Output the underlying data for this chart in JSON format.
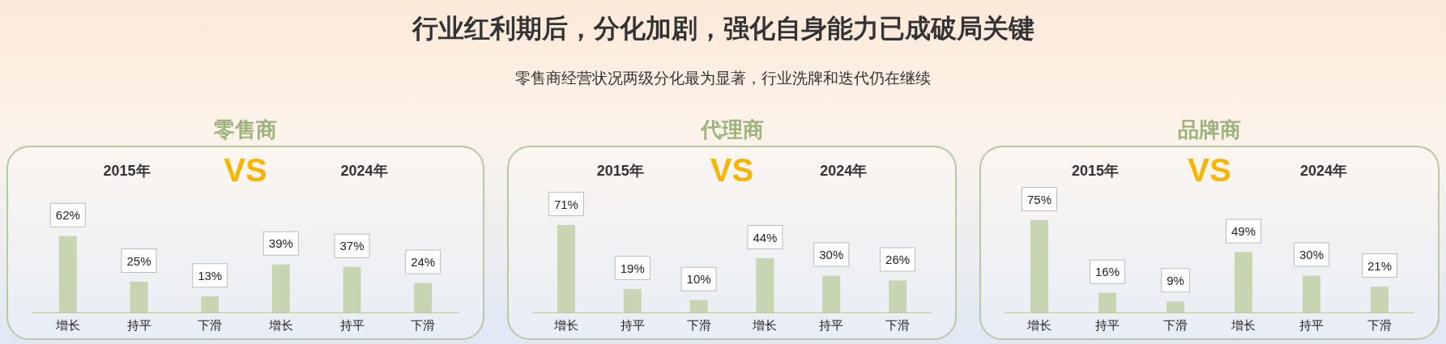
{
  "chart_data": [
    {
      "type": "other",
      "title": "行业红利期后，分化加剧，强化自身能力已成破局关键",
      "subtitle": "零售商经营状况两级分化最为显著，行业洗牌和迭代仍在继续"
    },
    {
      "type": "bar",
      "title": "零售商",
      "categories": [
        "增长",
        "持平",
        "下滑",
        "增长",
        "持平",
        "下滑"
      ],
      "annotations": [
        "2015年",
        "VS",
        "2024年"
      ],
      "color": "#c8d5b2",
      "values": [
        62,
        25,
        13,
        39,
        37,
        24
      ],
      "value_labels": [
        "62%",
        "25%",
        "13%",
        "39%",
        "37%",
        "24%"
      ]
    },
    {
      "type": "bar",
      "title": "代理商",
      "categories": [
        "增长",
        "持平",
        "下滑",
        "增长",
        "持平",
        "下滑"
      ],
      "annotations": [
        "2015年",
        "VS",
        "2024年"
      ],
      "color": "#c8d5b2",
      "values": [
        71,
        19,
        10,
        44,
        30,
        26
      ],
      "value_labels": [
        "71%",
        "19%",
        "10%",
        "44%",
        "30%",
        "26%"
      ]
    },
    {
      "type": "bar",
      "title": "品牌商",
      "categories": [
        "增长",
        "持平",
        "下滑",
        "增长",
        "持平",
        "下滑"
      ],
      "annotations": [
        "2015年",
        "VS",
        "2024年"
      ],
      "color": "#c8d5b2",
      "values": [
        75,
        16,
        9,
        49,
        30,
        21
      ],
      "value_labels": [
        "75%",
        "16%",
        "9%",
        "49%",
        "30%",
        "21%"
      ]
    }
  ]
}
